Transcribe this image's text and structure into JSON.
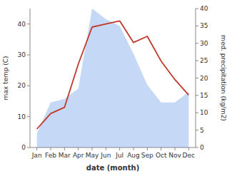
{
  "chart_data": {
    "type": "line",
    "xlabel": "date (month)",
    "ylabel": "max temp (C)",
    "y2label": "med. precipitation (kg/m2)",
    "categories": [
      "Jan",
      "Feb",
      "Mar",
      "Apr",
      "May",
      "Jun",
      "Jul",
      "Aug",
      "Sep",
      "Oct",
      "Nov",
      "Dec"
    ],
    "series": [
      {
        "type": "area",
        "axis": "y2",
        "color": "#c5d8f5",
        "values": [
          4,
          13,
          14,
          17,
          40,
          37,
          35,
          27,
          18,
          13,
          13,
          16
        ]
      },
      {
        "type": "line",
        "color": "#c0392b",
        "values": [
          6,
          11,
          13,
          27,
          39,
          40,
          41,
          34,
          36,
          28,
          22,
          17
        ]
      }
    ],
    "ylim": [
      0,
      45
    ],
    "yticks": [
      0,
      10,
      20,
      30,
      40
    ],
    "y2lim": [
      0,
      40
    ],
    "y2ticks": [
      0,
      5,
      10,
      15,
      20,
      25,
      30,
      35,
      40
    ],
    "grid": false
  }
}
